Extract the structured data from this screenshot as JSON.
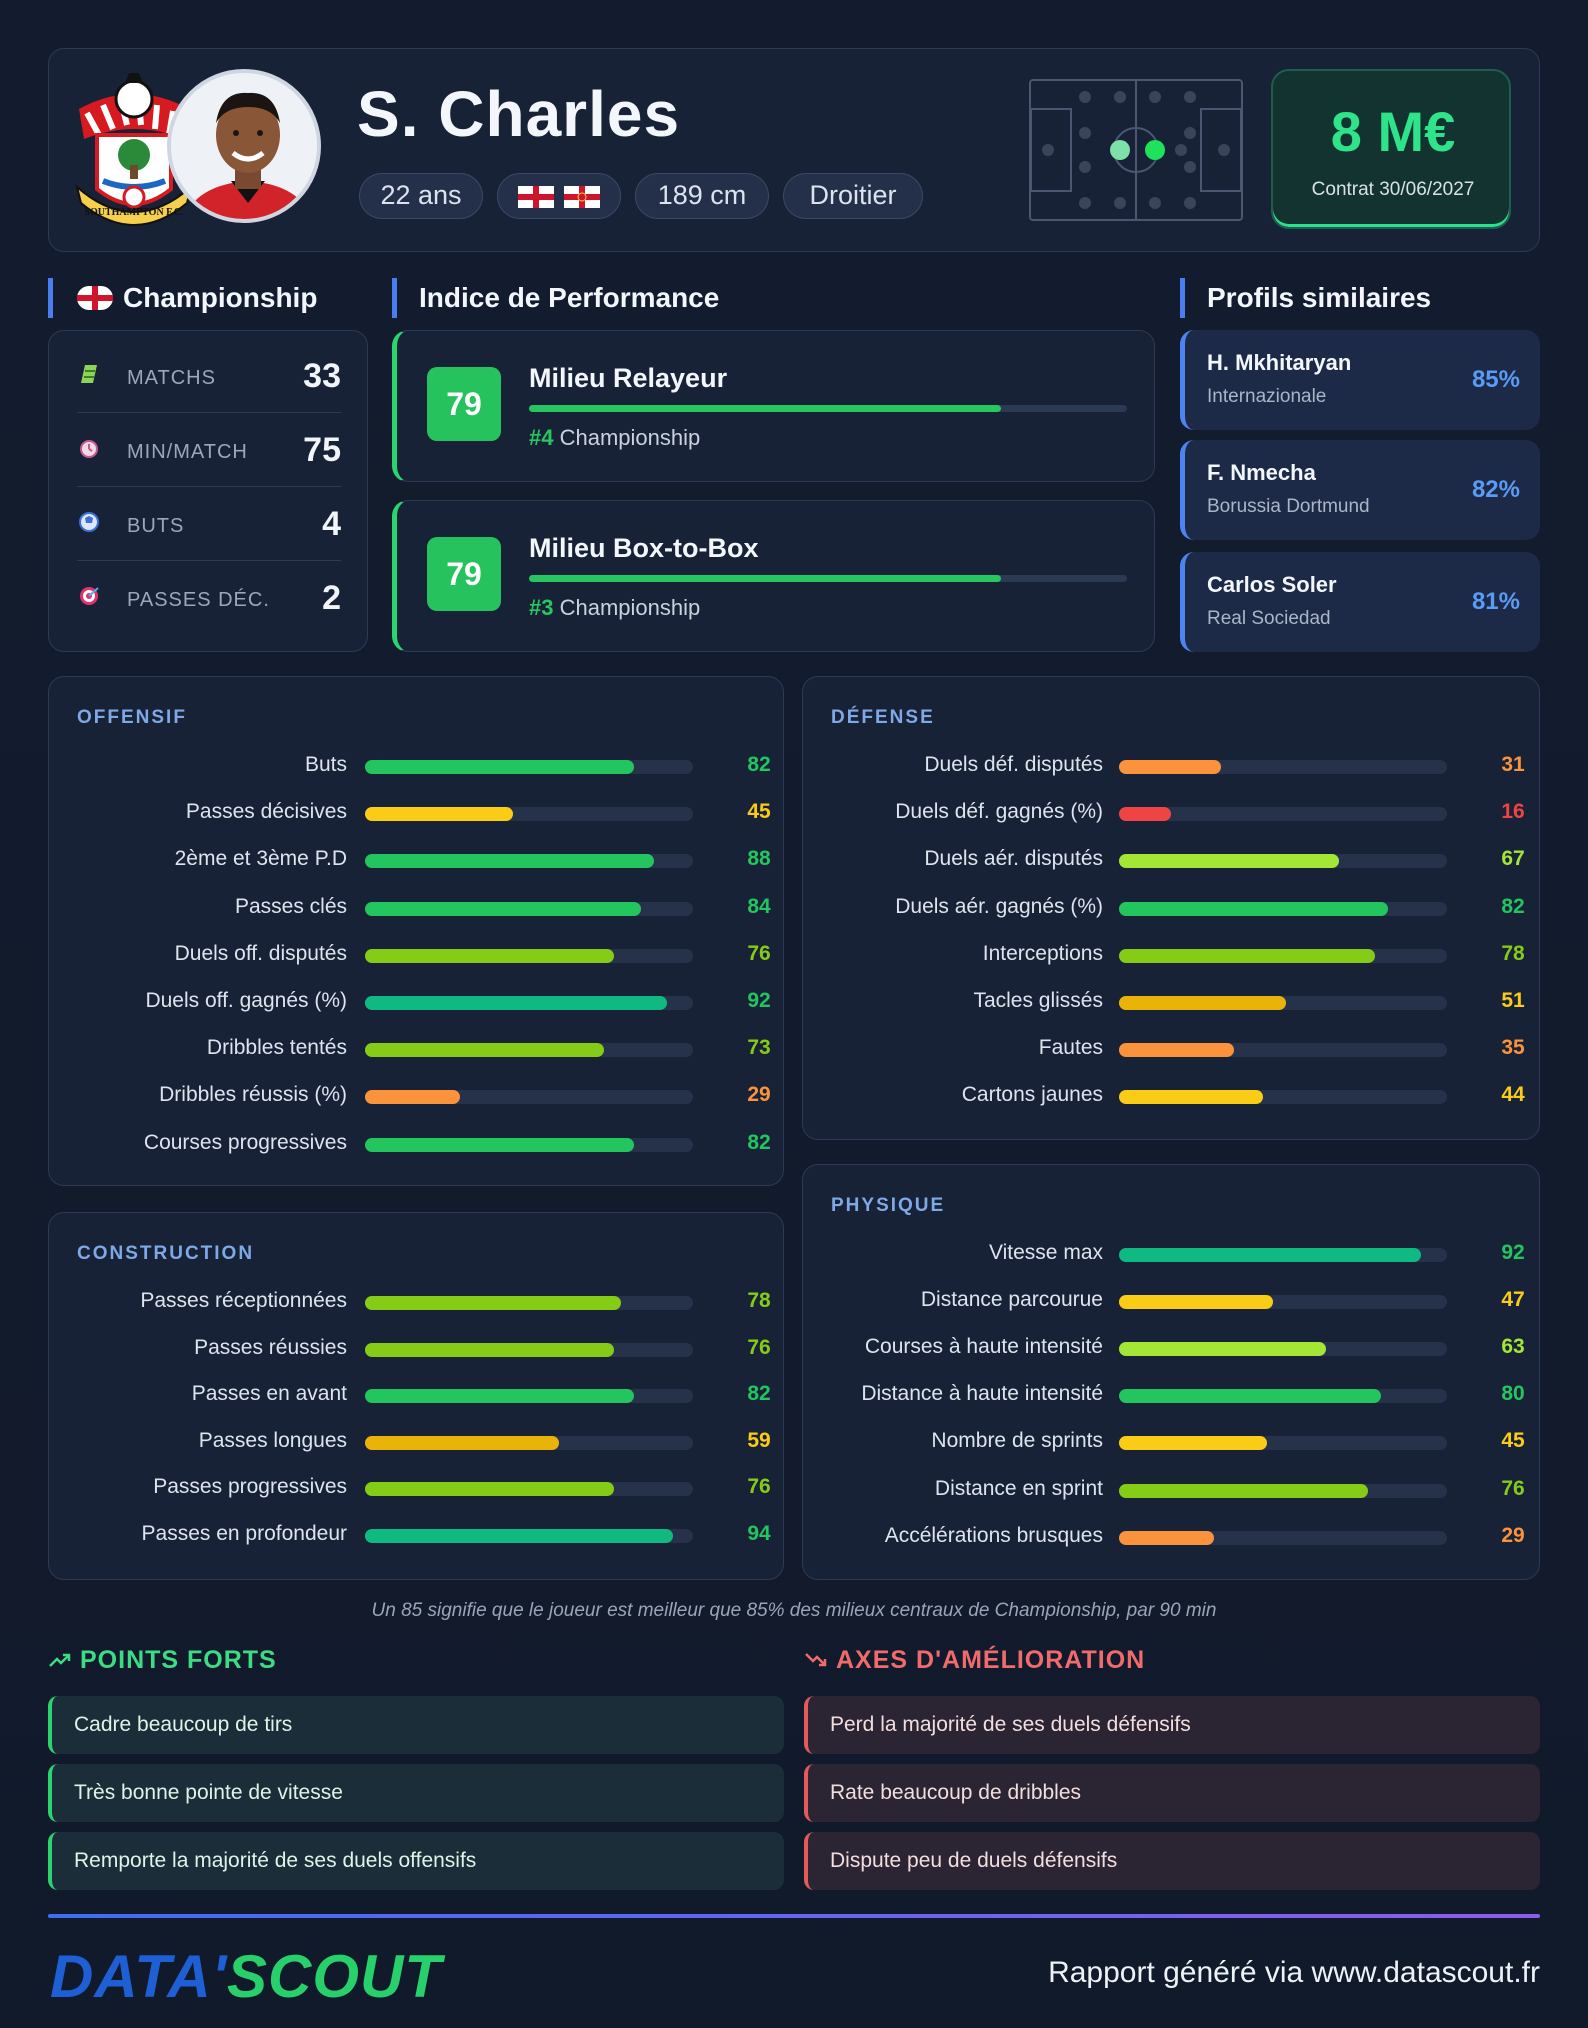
{
  "player": {
    "name": "S. Charles",
    "age": "22 ans",
    "height": "189 cm",
    "foot": "Droitier",
    "value": "8 M€",
    "contract": "Contrat 30/06/2027",
    "club_crest_text": "SOUTHAMPTON F.C."
  },
  "league": {
    "heading": "Championship"
  },
  "stats": [
    {
      "icon": "pitch-icon",
      "label": "MATCHS",
      "value": "33"
    },
    {
      "icon": "clock-icon",
      "label": "MIN/MATCH",
      "value": "75"
    },
    {
      "icon": "ball-icon",
      "label": "BUTS",
      "value": "4"
    },
    {
      "icon": "target-icon",
      "label": "PASSES DÉC.",
      "value": "2"
    }
  ],
  "performance": {
    "heading": "Indice de Performance",
    "roles": [
      {
        "score": "79",
        "title": "Milieu Relayeur",
        "rank": "#4",
        "league": "Championship",
        "fill": 0.79
      },
      {
        "score": "79",
        "title": "Milieu Box-to-Box",
        "rank": "#3",
        "league": "Championship",
        "fill": 0.79
      }
    ]
  },
  "similar": {
    "heading": "Profils similaires",
    "items": [
      {
        "name": "H. Mkhitaryan",
        "club": "Internazionale",
        "pct": "85%"
      },
      {
        "name": "F. Nmecha",
        "club": "Borussia Dortmund",
        "pct": "82%"
      },
      {
        "name": "Carlos Soler",
        "club": "Real Sociedad",
        "pct": "81%"
      }
    ]
  },
  "panels": {
    "offensif": {
      "title": "OFFENSIF",
      "rows": [
        {
          "label": "Buts",
          "value": 82
        },
        {
          "label": "Passes décisives",
          "value": 45
        },
        {
          "label": "2ème et 3ème P.D",
          "value": 88
        },
        {
          "label": "Passes clés",
          "value": 84
        },
        {
          "label": "Duels off. disputés",
          "value": 76
        },
        {
          "label": "Duels off. gagnés (%)",
          "value": 92
        },
        {
          "label": "Dribbles tentés",
          "value": 73
        },
        {
          "label": "Dribbles réussis (%)",
          "value": 29
        },
        {
          "label": "Courses progressives",
          "value": 82
        }
      ]
    },
    "defense": {
      "title": "DÉFENSE",
      "rows": [
        {
          "label": "Duels déf. disputés",
          "value": 31
        },
        {
          "label": "Duels déf. gagnés (%)",
          "value": 16
        },
        {
          "label": "Duels aér. disputés",
          "value": 67
        },
        {
          "label": "Duels aér. gagnés (%)",
          "value": 82
        },
        {
          "label": "Interceptions",
          "value": 78
        },
        {
          "label": "Tacles glissés",
          "value": 51
        },
        {
          "label": "Fautes",
          "value": 35
        },
        {
          "label": "Cartons jaunes",
          "value": 44
        }
      ]
    },
    "construction": {
      "title": "CONSTRUCTION",
      "rows": [
        {
          "label": "Passes réceptionnées",
          "value": 78
        },
        {
          "label": "Passes réussies",
          "value": 76
        },
        {
          "label": "Passes en avant",
          "value": 82
        },
        {
          "label": "Passes longues",
          "value": 59
        },
        {
          "label": "Passes progressives",
          "value": 76
        },
        {
          "label": "Passes en profondeur",
          "value": 94
        }
      ]
    },
    "physique": {
      "title": "PHYSIQUE",
      "rows": [
        {
          "label": "Vitesse max",
          "value": 92
        },
        {
          "label": "Distance parcourue",
          "value": 47
        },
        {
          "label": "Courses à haute intensité",
          "value": 63
        },
        {
          "label": "Distance à haute intensité",
          "value": 80
        },
        {
          "label": "Nombre de sprints",
          "value": 45
        },
        {
          "label": "Distance en sprint",
          "value": 76
        },
        {
          "label": "Accélérations brusques",
          "value": 29
        }
      ]
    }
  },
  "note": "Un 85 signifie que le joueur est meilleur que 85% des milieux centraux de Championship, par 90 min",
  "strengths": {
    "heading": "POINTS FORTS",
    "items": [
      "Cadre beaucoup de tirs",
      "Très bonne pointe de vitesse",
      "Remporte la majorité de ses duels offensifs"
    ]
  },
  "weaknesses": {
    "heading": "AXES D'AMÉLIORATION",
    "items": [
      "Perd la majorité de ses duels défensifs",
      "Rate beaucoup de dribbles",
      "Dispute peu de duels défensifs"
    ]
  },
  "footer": {
    "brand_left": "DATA'",
    "brand_right": "SCOUT",
    "text": "Rapport généré via www.datascout.fr"
  },
  "colors": {
    "green": "#22c55e",
    "teal": "#10b981",
    "lime": "#84cc16",
    "yellow_green": "#a3e635",
    "yellow": "#facc15",
    "amber": "#eab308",
    "orange": "#fb923c",
    "orange_red": "#f97316",
    "red": "#ef4444"
  }
}
